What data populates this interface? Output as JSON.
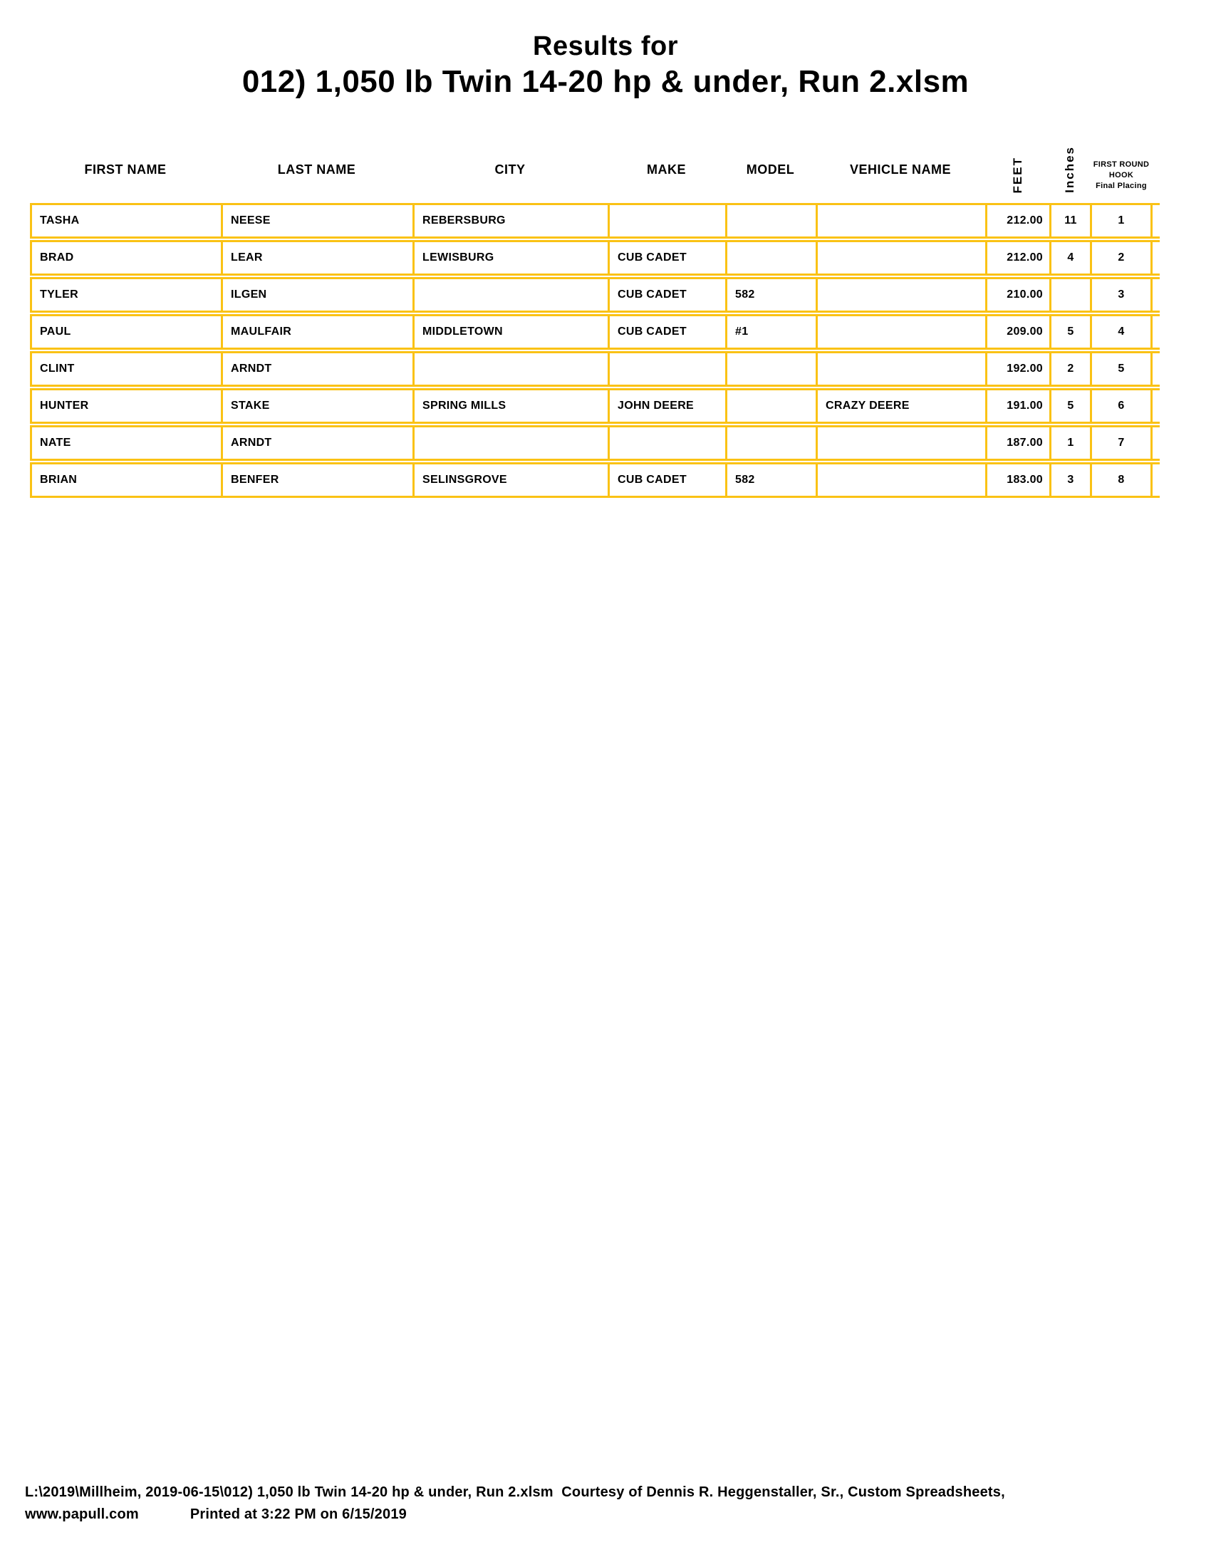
{
  "title": "Results for",
  "subtitle": "012) 1,050 lb Twin 14-20 hp & under, Run 2.xlsm",
  "colors": {
    "table_border": "#FAC215",
    "text": "#000000",
    "background": "#FFFFFF"
  },
  "table": {
    "header": {
      "first_name": "FIRST NAME",
      "last_name": "LAST NAME",
      "city": "CITY",
      "make": "MAKE",
      "model": "MODEL",
      "vehicle_name": "VEHICLE NAME",
      "feet": "FEET",
      "inches": "Inches",
      "hook_line1": "FIRST ROUND",
      "hook_line2": "HOOK",
      "hook_line3": "Final Placing"
    },
    "rows": [
      {
        "first_name": "TASHA",
        "last_name": "NEESE",
        "city": "REBERSBURG",
        "make": "",
        "model": "",
        "vehicle_name": "",
        "feet": "212.00",
        "inches": "11",
        "placing": "1"
      },
      {
        "first_name": "BRAD",
        "last_name": "LEAR",
        "city": "LEWISBURG",
        "make": "CUB CADET",
        "model": "",
        "vehicle_name": "",
        "feet": "212.00",
        "inches": "4",
        "placing": "2"
      },
      {
        "first_name": "TYLER",
        "last_name": "ILGEN",
        "city": "",
        "make": "CUB CADET",
        "model": "582",
        "vehicle_name": "",
        "feet": "210.00",
        "inches": "",
        "placing": "3"
      },
      {
        "first_name": "PAUL",
        "last_name": "MAULFAIR",
        "city": "MIDDLETOWN",
        "make": "CUB CADET",
        "model": "#1",
        "vehicle_name": "",
        "feet": "209.00",
        "inches": "5",
        "placing": "4"
      },
      {
        "first_name": "CLINT",
        "last_name": "ARNDT",
        "city": "",
        "make": "",
        "model": "",
        "vehicle_name": "",
        "feet": "192.00",
        "inches": "2",
        "placing": "5"
      },
      {
        "first_name": "HUNTER",
        "last_name": "STAKE",
        "city": "SPRING MILLS",
        "make": "JOHN DEERE",
        "model": "",
        "vehicle_name": "CRAZY DEERE",
        "feet": "191.00",
        "inches": "5",
        "placing": "6"
      },
      {
        "first_name": "NATE",
        "last_name": "ARNDT",
        "city": "",
        "make": "",
        "model": "",
        "vehicle_name": "",
        "feet": "187.00",
        "inches": "1",
        "placing": "7"
      },
      {
        "first_name": "BRIAN",
        "last_name": "BENFER",
        "city": "SELINSGROVE",
        "make": "CUB CADET",
        "model": "582",
        "vehicle_name": "",
        "feet": "183.00",
        "inches": "3",
        "placing": "8"
      }
    ]
  },
  "footer": {
    "line1": "L:\\2019\\Millheim, 2019-06-15\\012) 1,050 lb Twin 14-20 hp & under, Run 2.xlsm  Courtesy of Dennis R. Heggenstaller, Sr., Custom Spreadsheets,",
    "line2_left": "www.papull.com",
    "line2_right": "Printed at 3:22 PM on 6/15/2019"
  }
}
